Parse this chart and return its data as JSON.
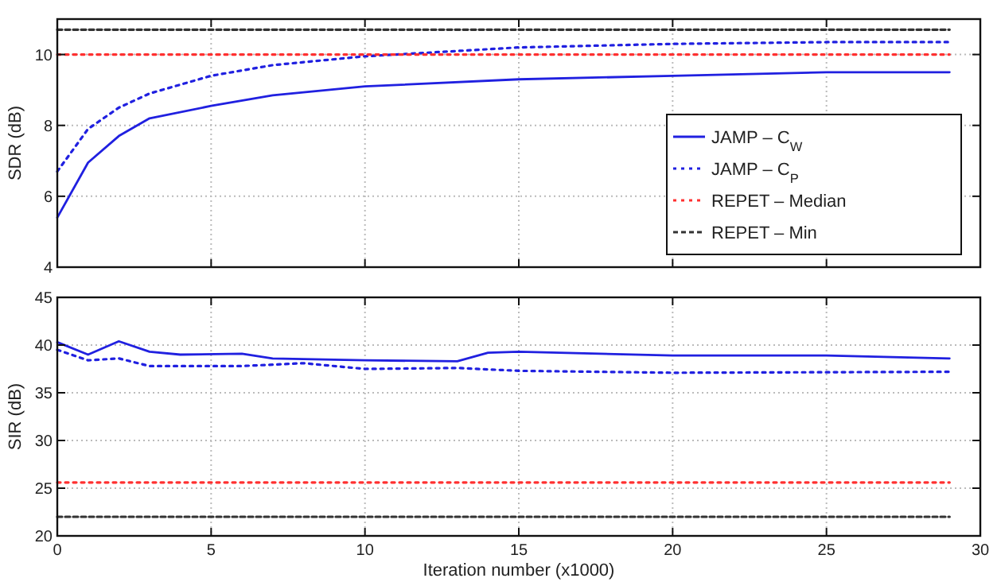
{
  "chart_data": [
    {
      "type": "line",
      "ylabel": "SDR (dB)",
      "xlim": [
        0,
        30
      ],
      "xticks": [
        0,
        5,
        10,
        15,
        20,
        25,
        30
      ],
      "ylim": [
        4,
        11
      ],
      "yticks": [
        4,
        6,
        8,
        10
      ],
      "tick_labels": "y",
      "grid": true,
      "legend": "bottom right",
      "series": [
        {
          "name": "JAMP – C$_{W}$",
          "color": "#2020e0",
          "line_style": "solid",
          "x": [
            0,
            1,
            2,
            3,
            5,
            7,
            10,
            15,
            20,
            25,
            29
          ],
          "values": [
            5.4,
            6.95,
            7.7,
            8.2,
            8.55,
            8.85,
            9.1,
            9.3,
            9.4,
            9.5,
            9.5
          ]
        },
        {
          "name": "JAMP – C$_{P}$",
          "color": "#2020e0",
          "line_style": "dotted",
          "x": [
            0,
            1,
            2,
            3,
            5,
            7,
            10,
            15,
            20,
            25,
            29
          ],
          "values": [
            6.7,
            7.9,
            8.5,
            8.9,
            9.4,
            9.7,
            9.95,
            10.2,
            10.3,
            10.35,
            10.35
          ]
        },
        {
          "name": "REPET – Median",
          "color": "#ff3030",
          "line_style": "dotted",
          "x": [
            0,
            29
          ],
          "values": [
            10,
            10
          ]
        },
        {
          "name": "REPET – Min",
          "color": "#333333",
          "line_style": "dashed",
          "x": [
            0,
            29
          ],
          "values": [
            10.7,
            10.7
          ]
        }
      ]
    },
    {
      "type": "line",
      "xlabel": "Iteration number (x1000)",
      "ylabel": "SIR (dB)",
      "xlim": [
        0,
        30
      ],
      "xticks": [
        0,
        5,
        10,
        15,
        20,
        25,
        30
      ],
      "ylim": [
        20,
        45
      ],
      "yticks": [
        20,
        25,
        30,
        35,
        40,
        45
      ],
      "grid": true,
      "series": [
        {
          "color": "#2020e0",
          "line_style": "solid",
          "x": [
            0,
            1,
            2,
            3,
            4,
            6,
            7,
            10,
            13,
            14,
            15,
            20,
            25,
            29
          ],
          "values": [
            40.3,
            39,
            40.4,
            39.3,
            39,
            39.1,
            38.6,
            38.4,
            38.3,
            39.2,
            39.3,
            38.9,
            38.9,
            38.6
          ]
        },
        {
          "color": "#2020e0",
          "line_style": "dotted",
          "x": [
            0,
            1,
            2,
            3,
            6,
            8,
            10,
            13,
            15,
            20,
            29
          ],
          "values": [
            39.5,
            38.4,
            38.6,
            37.8,
            37.8,
            38.1,
            37.5,
            37.6,
            37.3,
            37.1,
            37.2
          ]
        },
        {
          "color": "#ff3030",
          "line_style": "dotted",
          "x": [
            0,
            29
          ],
          "values": [
            25.6,
            25.6
          ]
        },
        {
          "color": "#333333",
          "line_style": "dashed",
          "x": [
            0,
            29
          ],
          "values": [
            22,
            22
          ]
        }
      ]
    }
  ]
}
